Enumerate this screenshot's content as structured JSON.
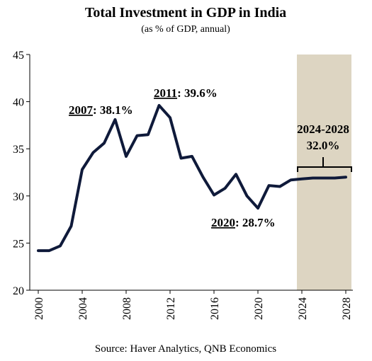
{
  "chart_data": {
    "type": "line",
    "title": "Total Investment in GDP in India",
    "subtitle": "(as % of GDP, annual)",
    "xlabel": "",
    "ylabel": "",
    "xlim": [
      2000,
      2028
    ],
    "ylim": [
      20,
      45
    ],
    "yticks": [
      20,
      25,
      30,
      35,
      40,
      45
    ],
    "xticks": [
      2000,
      2004,
      2008,
      2012,
      2016,
      2020,
      2024,
      2028
    ],
    "grid": false,
    "forecast_region": {
      "from": 2024,
      "to": 2028,
      "color": "#ddd5c2"
    },
    "series": [
      {
        "name": "",
        "color": "#0f1a3a",
        "x": [
          2000,
          2001,
          2002,
          2003,
          2004,
          2005,
          2006,
          2007,
          2008,
          2009,
          2010,
          2011,
          2012,
          2013,
          2014,
          2015,
          2016,
          2017,
          2018,
          2019,
          2020,
          2021,
          2022,
          2023,
          2024,
          2025,
          2026,
          2027,
          2028
        ],
        "values": [
          24.2,
          24.2,
          24.7,
          26.8,
          32.8,
          34.6,
          35.6,
          38.1,
          34.2,
          36.4,
          36.5,
          39.6,
          38.3,
          34.0,
          34.2,
          32.0,
          30.1,
          30.8,
          32.3,
          30.0,
          28.7,
          31.1,
          31.0,
          31.7,
          31.8,
          31.9,
          31.9,
          31.9,
          32.0
        ]
      }
    ],
    "annotations": [
      {
        "year": "2007",
        "value": "38.1%"
      },
      {
        "year": "2011",
        "value": "39.6%"
      },
      {
        "year": "2020",
        "value": "28.7%"
      },
      {
        "year": "2024-2028",
        "value": "32.0%"
      }
    ],
    "source": "Source: Haver Analytics, QNB Economics"
  }
}
